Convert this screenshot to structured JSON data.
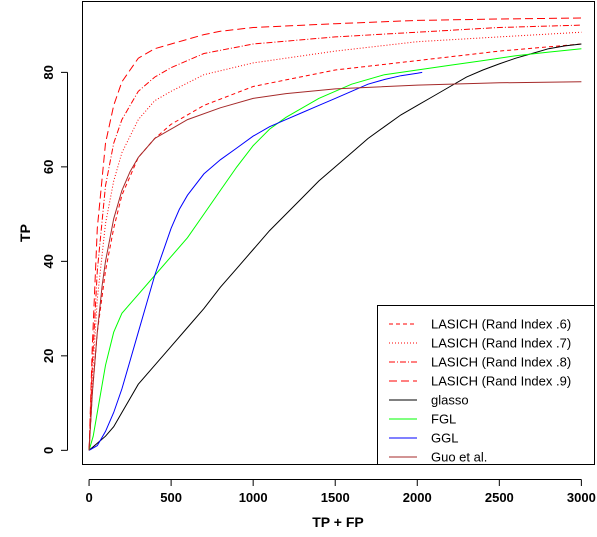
{
  "chart_data": {
    "type": "line",
    "title": "",
    "xlabel": "TP + FP",
    "ylabel": "TP",
    "xlim": [
      -40,
      3080
    ],
    "ylim": [
      -3,
      95
    ],
    "xticks": [
      0,
      500,
      1000,
      1500,
      2000,
      2500,
      3000
    ],
    "yticks": [
      0,
      20,
      40,
      60,
      80
    ],
    "grid": false,
    "legend_position": "bottom-right",
    "series": [
      {
        "name": "LASICH (Rand Index .6)",
        "color": "#ff0000",
        "dash": "4,3",
        "x": [
          0,
          20,
          50,
          100,
          150,
          200,
          300,
          400,
          500,
          700,
          1000,
          1500,
          2000,
          2500,
          3000
        ],
        "y": [
          0,
          12,
          25,
          38,
          47,
          54,
          62,
          66,
          69,
          73,
          77,
          80.5,
          82.5,
          84.5,
          86
        ]
      },
      {
        "name": "LASICH (Rand Index .7)",
        "color": "#ff0000",
        "dash": "1,2",
        "x": [
          0,
          20,
          50,
          100,
          150,
          200,
          300,
          400,
          500,
          700,
          1000,
          1500,
          2000,
          2500,
          3000
        ],
        "y": [
          0,
          15,
          32,
          48,
          57,
          63,
          70,
          74,
          76,
          79.5,
          82,
          84.5,
          86.5,
          87.5,
          88.5
        ]
      },
      {
        "name": "LASICH (Rand Index .8)",
        "color": "#ff0000",
        "dash": "6,2,1,2",
        "x": [
          0,
          20,
          50,
          100,
          150,
          200,
          300,
          400,
          500,
          700,
          1000,
          1500,
          2000,
          2500,
          3000
        ],
        "y": [
          0,
          18,
          38,
          56,
          65,
          70,
          76,
          79,
          81,
          84,
          86,
          87.5,
          88.5,
          89.5,
          90
        ]
      },
      {
        "name": "LASICH (Rand Index .9)",
        "color": "#ff0000",
        "dash": "8,4",
        "x": [
          0,
          20,
          50,
          100,
          150,
          200,
          300,
          400,
          500,
          700,
          800,
          1000,
          1500,
          2000,
          2500,
          3000
        ],
        "y": [
          0,
          22,
          47,
          65,
          73,
          78,
          83,
          85,
          86,
          88,
          88.7,
          89.5,
          90.3,
          91,
          91.3,
          91.5
        ]
      },
      {
        "name": "glasso",
        "color": "#000000",
        "dash": "",
        "x": [
          0,
          50,
          100,
          150,
          200,
          250,
          300,
          400,
          500,
          600,
          700,
          800,
          900,
          1000,
          1100,
          1200,
          1300,
          1400,
          1500,
          1600,
          1700,
          1800,
          1900,
          2000,
          2100,
          2200,
          2300,
          2400,
          2500,
          2600,
          2700,
          2800,
          2900,
          3000
        ],
        "y": [
          0,
          1.5,
          3,
          5,
          8,
          11,
          14,
          18,
          22,
          26,
          30,
          34.5,
          38.5,
          42.5,
          46.5,
          50,
          53.5,
          57,
          60,
          63,
          66,
          68.5,
          71,
          73,
          75,
          77,
          79,
          80.5,
          81.8,
          83,
          84,
          85,
          85.6,
          86
        ]
      },
      {
        "name": "FGL",
        "color": "#00ff00",
        "dash": "",
        "x": [
          0,
          25,
          50,
          75,
          100,
          150,
          200,
          300,
          400,
          500,
          600,
          700,
          800,
          900,
          1000,
          1100,
          1200,
          1400,
          1600,
          1800,
          2000,
          2200,
          2400,
          2600,
          2800,
          3000
        ],
        "y": [
          0,
          3,
          8,
          13,
          18,
          25,
          29,
          33,
          37,
          41,
          45,
          50,
          55,
          60,
          64.5,
          68,
          70.5,
          74.5,
          77.5,
          79.5,
          80.5,
          81.5,
          82.5,
          83.5,
          84.3,
          85
        ]
      },
      {
        "name": "GGL",
        "color": "#0000ff",
        "dash": "",
        "x": [
          0,
          50,
          100,
          150,
          200,
          250,
          300,
          350,
          400,
          450,
          500,
          550,
          600,
          700,
          800,
          900,
          1000,
          1100,
          1200,
          1300,
          1400,
          1500,
          1600,
          1700,
          1800,
          1900,
          2000,
          2030
        ],
        "y": [
          0,
          1,
          4,
          8,
          13,
          19,
          25,
          31,
          37,
          42,
          47,
          51,
          54,
          58.5,
          61.5,
          64,
          66.5,
          68.5,
          70,
          71.5,
          73,
          74.5,
          76,
          77.5,
          78.5,
          79.3,
          79.8,
          80
        ]
      },
      {
        "name": "Guo et al.",
        "color": "#a52a2a",
        "dash": "",
        "x": [
          0,
          20,
          50,
          80,
          100,
          150,
          200,
          250,
          300,
          400,
          500,
          600,
          800,
          1000,
          1200,
          1500,
          2000,
          2500,
          3000
        ],
        "y": [
          0,
          12,
          25,
          35,
          40,
          49,
          55,
          59,
          62,
          66,
          68,
          70,
          72.5,
          74.5,
          75.5,
          76.5,
          77.3,
          77.8,
          78
        ]
      }
    ]
  }
}
